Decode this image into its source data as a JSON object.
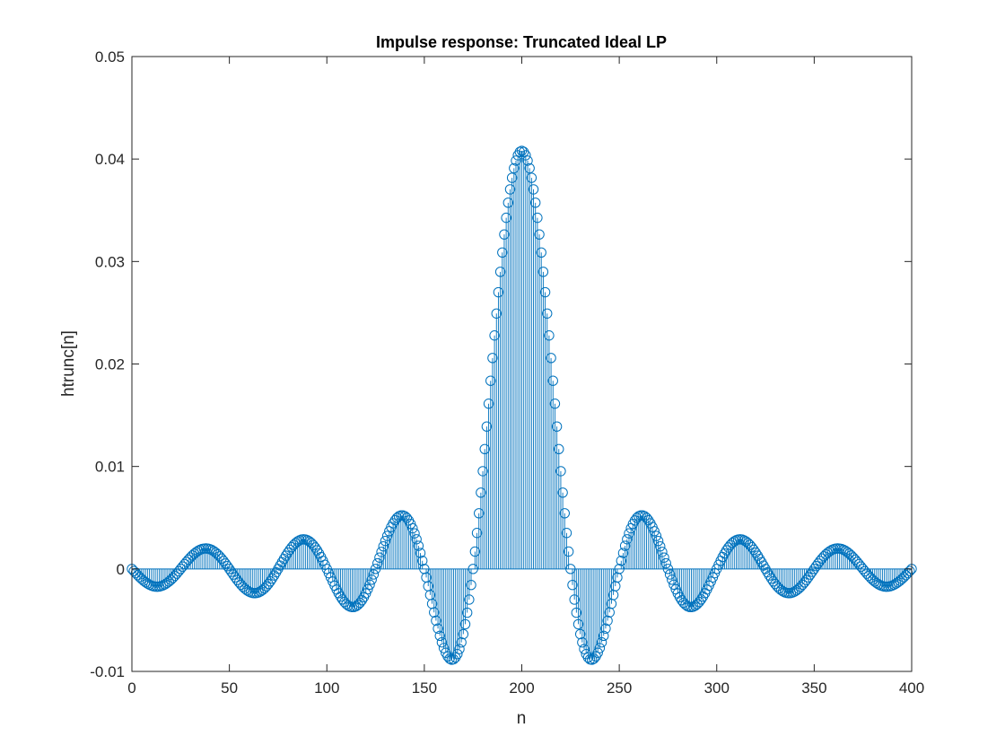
{
  "chart_data": {
    "type": "stem",
    "title": "Impulse response: Truncated Ideal LP",
    "xlabel": "n",
    "ylabel": "htrunc[n]",
    "xlim": [
      0,
      400
    ],
    "ylim": [
      -0.01,
      0.05
    ],
    "x_ticks": [
      0,
      50,
      100,
      150,
      200,
      250,
      300,
      350,
      400
    ],
    "y_ticks": [
      -0.01,
      0,
      0.01,
      0.02,
      0.03,
      0.04,
      0.05
    ],
    "x_tick_labels": [
      "0",
      "50",
      "100",
      "150",
      "200",
      "250",
      "300",
      "350",
      "400"
    ],
    "y_tick_labels": [
      "-0.01",
      "0",
      "0.01",
      "0.02",
      "0.03",
      "0.04",
      "0.05"
    ],
    "grid": false,
    "series": [
      {
        "color": "#0072BD",
        "marker": "circle-open",
        "n_start": 0,
        "n_end": 400,
        "center": 200,
        "peak": 0.0408,
        "first_zero_offset": 25,
        "sampled_values": {
          "n": [
            0,
            17,
            40,
            65,
            90,
            115,
            140,
            165,
            175,
            200,
            225,
            235,
            260,
            285,
            310,
            335,
            360,
            383,
            400
          ],
          "value": [
            0.0008,
            -0.0019,
            0.0021,
            -0.0025,
            0.0029,
            -0.0037,
            0.0053,
            -0.009,
            0.0,
            0.0408,
            0.0,
            -0.009,
            0.0053,
            -0.0037,
            0.0029,
            -0.0025,
            0.0021,
            -0.0019,
            0.0008
          ]
        }
      }
    ]
  }
}
